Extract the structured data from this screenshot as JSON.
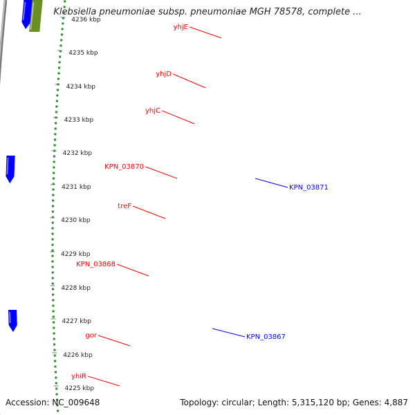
{
  "title": "Klebsiella pneumoniae subsp. pneumoniae MGH 78578, complete ...",
  "accession": "Accession: NC_009648",
  "topology": "Topology: circular; Length: 5,315,120 bp; Genes: 4,887",
  "colors": {
    "red": "#ff0000",
    "red_light": "#f08080",
    "gray_dark": "#606060",
    "gray_light": "#c0c0c0",
    "cyan": "#00d8d8",
    "cyan_bright": "#00ffff",
    "blue": "#0000ff",
    "olive": "#6b8e23",
    "dots": "#228b22",
    "backbone": "#909090"
  },
  "ticks": [
    "4225 kbp",
    "4226 kbp",
    "4227 kbp",
    "4228 kbp",
    "4229 kbp",
    "4230 kbp",
    "4231 kbp",
    "4232 kbp",
    "4233 kbp",
    "4234 kbp",
    "4235 kbp",
    "4236 kbp"
  ],
  "left_labels": [
    {
      "text": "yhjE",
      "color": "red"
    },
    {
      "text": "yhjD",
      "color": "red"
    },
    {
      "text": "yhjC",
      "color": "red"
    },
    {
      "text": "KPN_03870",
      "color": "red"
    },
    {
      "text": "treF",
      "color": "red"
    },
    {
      "text": "KPN_03868",
      "color": "red"
    },
    {
      "text": "gor",
      "color": "red"
    },
    {
      "text": "yhiR",
      "color": "red"
    }
  ],
  "right_labels": [
    {
      "text": "KPN_03871",
      "color": "blue"
    },
    {
      "text": "KPN_03867",
      "color": "blue"
    }
  ]
}
